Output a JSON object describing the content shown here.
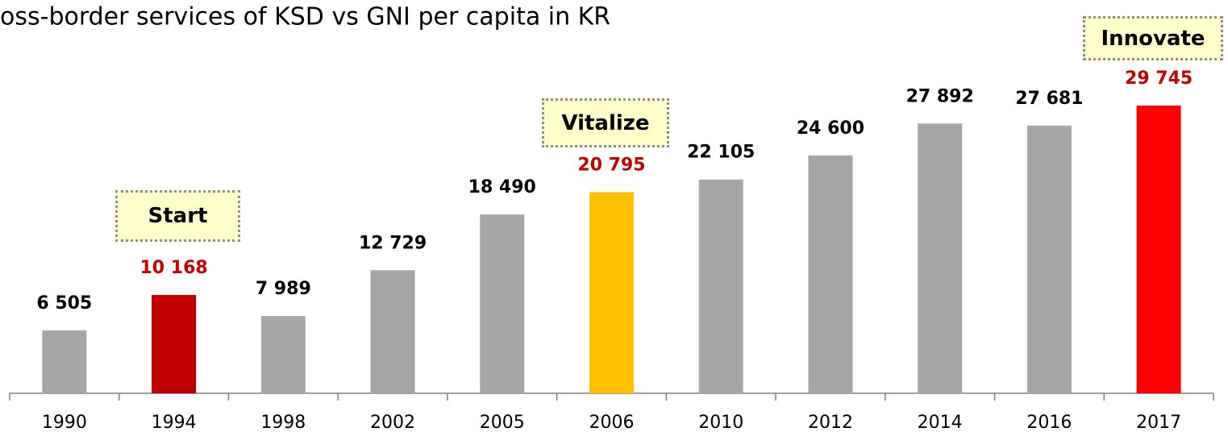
{
  "chart_data": {
    "type": "bar",
    "title": "oss-border services of KSD vs GNI per capita in KR",
    "categories": [
      "1990",
      "1994",
      "1998",
      "2002",
      "2005",
      "2006",
      "2010",
      "2012",
      "2014",
      "2016",
      "2017"
    ],
    "values": [
      6505,
      10168,
      7989,
      12729,
      18490,
      20795,
      22105,
      24600,
      27892,
      27681,
      29745
    ],
    "value_labels": [
      "6 505",
      "10 168",
      "7 989",
      "12 729",
      "18 490",
      "20 795",
      "22 105",
      "24 600",
      "27 892",
      "27 681",
      "29 745"
    ],
    "colors": [
      "#a6a6a6",
      "#c00000",
      "#a6a6a6",
      "#a6a6a6",
      "#a6a6a6",
      "#ffc000",
      "#a6a6a6",
      "#a6a6a6",
      "#a6a6a6",
      "#a6a6a6",
      "#ff0000"
    ],
    "label_colors": [
      "#000000",
      "#c00000",
      "#000000",
      "#000000",
      "#000000",
      "#c00000",
      "#000000",
      "#000000",
      "#000000",
      "#000000",
      "#c00000"
    ],
    "annotations": [
      "Start",
      "Vitalize",
      "Innovate"
    ],
    "ylim": [
      0,
      30000
    ]
  }
}
